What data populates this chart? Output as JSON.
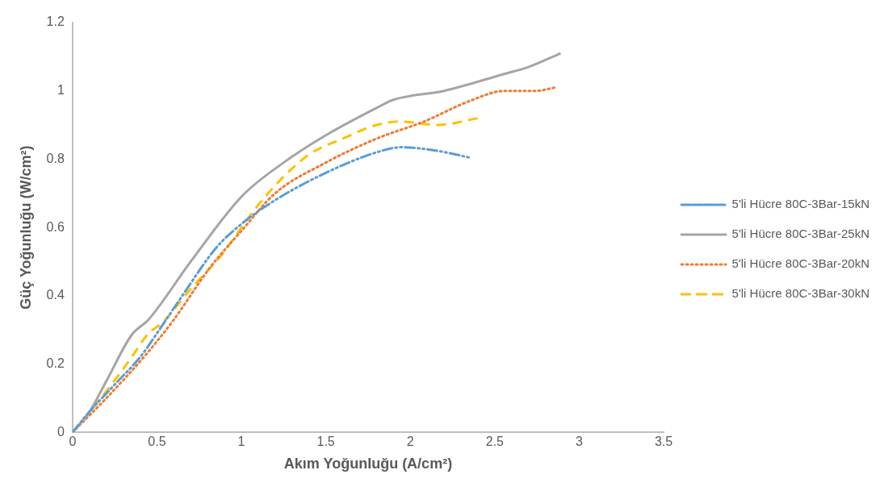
{
  "chart_data": {
    "type": "line",
    "xlabel": "Akım Yoğunluğu (A/cm²)",
    "ylabel": "Güç Yoğunluğu (W/cm²)",
    "xlim": [
      0,
      3.5
    ],
    "xticks": [
      0,
      0.5,
      1,
      1.5,
      2,
      2.5,
      3,
      3.5
    ],
    "ylim": [
      0,
      1.2
    ],
    "yticks": [
      0,
      0.2,
      0.4,
      0.6,
      0.8,
      1,
      1.2
    ],
    "grid": false,
    "legend": "right",
    "marker": "none",
    "series": [
      {
        "name": "5'li Hücre 80C-3Bar-15kN",
        "color": "#5b9bd5",
        "line_style": "dashdotdot",
        "x": [
          0,
          0.1,
          0.25,
          0.4,
          0.5,
          0.65,
          0.85,
          1.0,
          1.2,
          1.5,
          1.8,
          1.95,
          2.15,
          2.36
        ],
        "values": [
          0,
          0.06,
          0.14,
          0.22,
          0.29,
          0.4,
          0.54,
          0.61,
          0.68,
          0.76,
          0.82,
          0.835,
          0.825,
          0.804
        ]
      },
      {
        "name": "5'li Hücre 80C-3Bar-25kN",
        "color": "#a5a5a5",
        "line_style": "solid",
        "x": [
          0,
          0.1,
          0.2,
          0.35,
          0.45,
          0.7,
          1.0,
          1.25,
          1.5,
          1.8,
          1.9,
          2.2,
          2.56,
          2.7,
          2.89
        ],
        "values": [
          0,
          0.06,
          0.15,
          0.285,
          0.33,
          0.5,
          0.69,
          0.79,
          0.87,
          0.95,
          0.974,
          1.0,
          1.05,
          1.07,
          1.11
        ]
      },
      {
        "name": "5'li Hücre 80C-3Bar-20kN",
        "color": "#ed7d31",
        "line_style": "dotted",
        "x": [
          0,
          0.2,
          0.43,
          0.6,
          0.81,
          1.0,
          1.2,
          1.5,
          1.8,
          2.08,
          2.35,
          2.56,
          2.74,
          2.86
        ],
        "values": [
          0,
          0.1,
          0.225,
          0.33,
          0.48,
          0.59,
          0.7,
          0.79,
          0.86,
          0.91,
          0.97,
          1.0,
          1.0,
          1.01
        ]
      },
      {
        "name": "5'li Hücre 80C-3Bar-30kN",
        "color": "#ffc000",
        "line_style": "dashed",
        "x": [
          0,
          0.2,
          0.35,
          0.45,
          0.53,
          0.7,
          0.9,
          1.0,
          1.14,
          1.39,
          1.6,
          1.8,
          1.94,
          2.16,
          2.4
        ],
        "values": [
          0,
          0.12,
          0.22,
          0.29,
          0.32,
          0.42,
          0.53,
          0.6,
          0.69,
          0.81,
          0.86,
          0.9,
          0.91,
          0.9,
          0.92
        ]
      }
    ]
  }
}
